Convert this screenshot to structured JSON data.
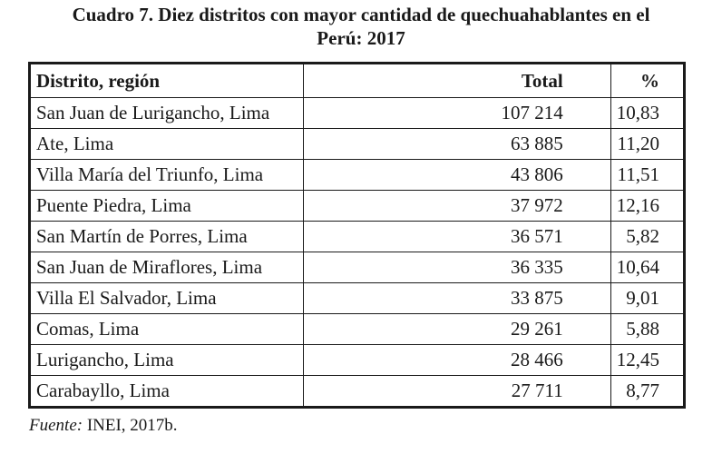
{
  "title": "Cuadro 7. Diez distritos con mayor cantidad de quechuahablantes en el Perú: 2017",
  "title_line1": "Cuadro 7. Diez distritos con mayor cantidad de quechuahablantes en el",
  "title_line2": "Perú: 2017",
  "columns": [
    "Distrito, región",
    "Total",
    "%"
  ],
  "rows": [
    [
      "San Juan de Lurigancho, Lima",
      "107 214",
      "10,83"
    ],
    [
      "Ate, Lima",
      "63 885",
      "11,20"
    ],
    [
      "Villa María del Triunfo, Lima",
      "43 806",
      "11,51"
    ],
    [
      "Puente Piedra, Lima",
      "37 972",
      "12,16"
    ],
    [
      "San Martín de Porres, Lima",
      "36 571",
      "5,82"
    ],
    [
      "San Juan de Miraflores, Lima",
      "36 335",
      "10,64"
    ],
    [
      "Villa El Salvador, Lima",
      "33 875",
      "9,01"
    ],
    [
      "Comas, Lima",
      "29 261",
      "5,88"
    ],
    [
      "Lurigancho, Lima",
      "28 466",
      "12,45"
    ],
    [
      "Carabayllo, Lima",
      "27 711",
      "8,77"
    ]
  ],
  "source_label": "Fuente:",
  "source_text": " INEI, 2017b."
}
